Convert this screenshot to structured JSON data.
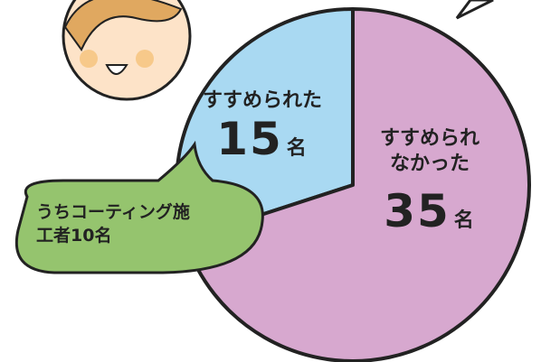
{
  "chart_data": {
    "type": "pie",
    "categories": [
      "すすめられた",
      "すすめられなかった"
    ],
    "values": [
      15,
      35
    ],
    "unit": "名",
    "colors": [
      "#a9d9f2",
      "#d7a8cf"
    ],
    "annotation": "うちコーティング施工者10名"
  }
}
